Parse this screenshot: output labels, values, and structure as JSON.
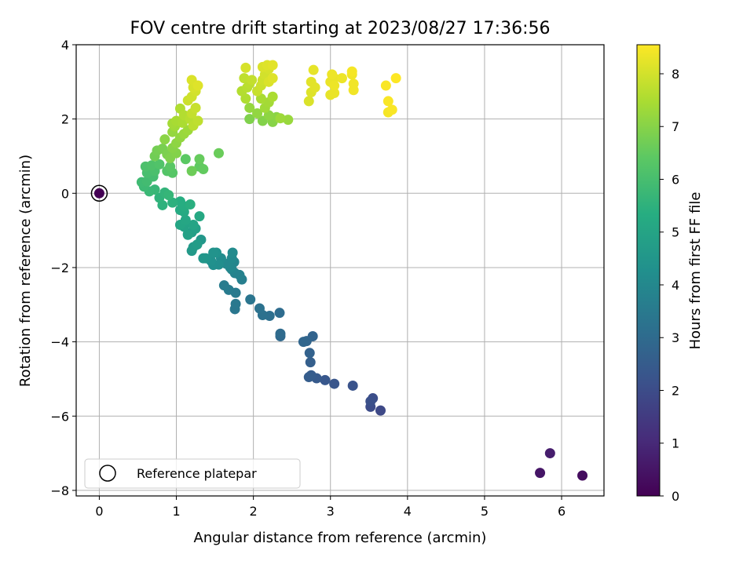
{
  "chart_data": {
    "type": "scatter",
    "title": "FOV centre drift starting at 2023/08/27 17:36:56",
    "xlabel": "Angular distance from reference (arcmin)",
    "ylabel": "Rotation from reference (arcmin)",
    "xlim": [
      -0.3,
      6.55
    ],
    "ylim": [
      -8.15,
      4.0
    ],
    "xticks": [
      0,
      1,
      2,
      3,
      4,
      5,
      6
    ],
    "yticks": [
      -8,
      -6,
      -4,
      -2,
      0,
      2,
      4
    ],
    "xtick_labels": [
      "0",
      "1",
      "2",
      "3",
      "4",
      "5",
      "6"
    ],
    "ytick_labels": [
      "−8",
      "−6",
      "−4",
      "−2",
      "0",
      "2",
      "4"
    ],
    "grid": true,
    "colormap": "viridis",
    "colorbar": {
      "label": "Hours from first FF file",
      "range": [
        0,
        8.55
      ],
      "ticks": [
        0,
        1,
        2,
        3,
        4,
        5,
        6,
        7,
        8
      ],
      "tick_labels": [
        "0",
        "1",
        "2",
        "3",
        "4",
        "5",
        "6",
        "7",
        "8"
      ]
    },
    "legend": {
      "placement": "lower-left",
      "entries": [
        {
          "label": "Reference platepar",
          "marker": "open-circle"
        }
      ]
    },
    "reference_point": {
      "x": 0,
      "y": 0,
      "hours": 0.0
    },
    "series": [
      {
        "points": [
          {
            "x": 6.27,
            "y": -7.6,
            "h": 0.3
          },
          {
            "x": 5.72,
            "y": -7.53,
            "h": 0.5
          },
          {
            "x": 5.85,
            "y": -7.0,
            "h": 0.7
          },
          {
            "x": 3.65,
            "y": -5.85,
            "h": 1.9
          },
          {
            "x": 3.52,
            "y": -5.75,
            "h": 2.0
          },
          {
            "x": 3.55,
            "y": -5.52,
            "h": 2.05
          },
          {
            "x": 3.52,
            "y": -5.6,
            "h": 2.1
          },
          {
            "x": 3.29,
            "y": -5.18,
            "h": 2.2
          },
          {
            "x": 3.05,
            "y": -5.13,
            "h": 2.3
          },
          {
            "x": 2.93,
            "y": -5.03,
            "h": 2.35
          },
          {
            "x": 2.82,
            "y": -4.98,
            "h": 2.45
          },
          {
            "x": 2.75,
            "y": -4.9,
            "h": 2.5
          },
          {
            "x": 2.72,
            "y": -4.95,
            "h": 2.55
          },
          {
            "x": 2.74,
            "y": -4.55,
            "h": 2.6
          },
          {
            "x": 2.73,
            "y": -4.3,
            "h": 2.7
          },
          {
            "x": 2.77,
            "y": -3.85,
            "h": 2.75
          },
          {
            "x": 2.69,
            "y": -3.98,
            "h": 2.8
          },
          {
            "x": 2.65,
            "y": -4.0,
            "h": 2.85
          },
          {
            "x": 2.35,
            "y": -3.85,
            "h": 2.95
          },
          {
            "x": 2.35,
            "y": -3.78,
            "h": 3.0
          },
          {
            "x": 2.34,
            "y": -3.22,
            "h": 3.05
          },
          {
            "x": 2.21,
            "y": -3.3,
            "h": 3.15
          },
          {
            "x": 2.12,
            "y": -3.28,
            "h": 3.2
          },
          {
            "x": 2.08,
            "y": -3.1,
            "h": 3.25
          },
          {
            "x": 1.96,
            "y": -2.86,
            "h": 3.35
          },
          {
            "x": 1.76,
            "y": -3.12,
            "h": 3.4
          },
          {
            "x": 1.77,
            "y": -2.98,
            "h": 3.45
          },
          {
            "x": 1.77,
            "y": -2.68,
            "h": 3.5
          },
          {
            "x": 1.68,
            "y": -2.6,
            "h": 3.55
          },
          {
            "x": 1.62,
            "y": -2.48,
            "h": 3.6
          },
          {
            "x": 1.85,
            "y": -2.32,
            "h": 3.7
          },
          {
            "x": 1.82,
            "y": -2.2,
            "h": 3.75
          },
          {
            "x": 1.76,
            "y": -2.15,
            "h": 3.8
          },
          {
            "x": 1.72,
            "y": -2.05,
            "h": 3.85
          },
          {
            "x": 1.75,
            "y": -1.85,
            "h": 3.9
          },
          {
            "x": 1.7,
            "y": -2.0,
            "h": 3.95
          },
          {
            "x": 1.65,
            "y": -1.9,
            "h": 4.0
          },
          {
            "x": 1.72,
            "y": -1.75,
            "h": 4.05
          },
          {
            "x": 1.73,
            "y": -1.6,
            "h": 4.1
          },
          {
            "x": 1.58,
            "y": -1.75,
            "h": 4.15
          },
          {
            "x": 1.55,
            "y": -1.92,
            "h": 4.2
          },
          {
            "x": 1.48,
            "y": -1.93,
            "h": 4.25
          },
          {
            "x": 1.45,
            "y": -1.82,
            "h": 4.3
          },
          {
            "x": 1.52,
            "y": -1.6,
            "h": 4.35
          },
          {
            "x": 1.48,
            "y": -1.6,
            "h": 4.4
          },
          {
            "x": 1.38,
            "y": -1.75,
            "h": 4.45
          },
          {
            "x": 1.35,
            "y": -1.75,
            "h": 4.5
          },
          {
            "x": 1.32,
            "y": -1.25,
            "h": 4.55
          },
          {
            "x": 1.2,
            "y": -1.55,
            "h": 4.6
          },
          {
            "x": 1.22,
            "y": -1.45,
            "h": 4.65
          },
          {
            "x": 1.27,
            "y": -1.38,
            "h": 4.7
          },
          {
            "x": 1.15,
            "y": -1.1,
            "h": 4.75
          },
          {
            "x": 1.2,
            "y": -1.05,
            "h": 4.8
          },
          {
            "x": 1.25,
            "y": -0.95,
            "h": 4.85
          },
          {
            "x": 1.15,
            "y": -1.12,
            "h": 4.9
          },
          {
            "x": 1.1,
            "y": -0.9,
            "h": 4.95
          },
          {
            "x": 1.22,
            "y": -0.85,
            "h": 5.0
          },
          {
            "x": 1.05,
            "y": -0.85,
            "h": 5.05
          },
          {
            "x": 1.12,
            "y": -0.72,
            "h": 5.1
          },
          {
            "x": 1.3,
            "y": -0.62,
            "h": 5.15
          },
          {
            "x": 1.1,
            "y": -0.5,
            "h": 5.2
          },
          {
            "x": 1.05,
            "y": -0.45,
            "h": 5.25
          },
          {
            "x": 1.1,
            "y": -0.35,
            "h": 5.3
          },
          {
            "x": 1.05,
            "y": -0.22,
            "h": 5.35
          },
          {
            "x": 1.18,
            "y": -0.3,
            "h": 5.4
          },
          {
            "x": 0.95,
            "y": -0.25,
            "h": 5.45
          },
          {
            "x": 0.82,
            "y": -0.32,
            "h": 5.5
          },
          {
            "x": 0.78,
            "y": -0.12,
            "h": 5.55
          },
          {
            "x": 0.85,
            "y": 0.02,
            "h": 5.6
          },
          {
            "x": 0.9,
            "y": -0.05,
            "h": 5.65
          },
          {
            "x": 0.72,
            "y": 0.1,
            "h": 5.7
          },
          {
            "x": 0.65,
            "y": 0.05,
            "h": 5.75
          },
          {
            "x": 0.58,
            "y": 0.18,
            "h": 5.8
          },
          {
            "x": 0.55,
            "y": 0.3,
            "h": 5.85
          },
          {
            "x": 0.62,
            "y": 0.32,
            "h": 5.9
          },
          {
            "x": 0.7,
            "y": 0.45,
            "h": 5.95
          },
          {
            "x": 0.62,
            "y": 0.55,
            "h": 6.0
          },
          {
            "x": 0.72,
            "y": 0.6,
            "h": 6.05
          },
          {
            "x": 0.6,
            "y": 0.72,
            "h": 6.1
          },
          {
            "x": 0.68,
            "y": 0.75,
            "h": 6.15
          },
          {
            "x": 0.78,
            "y": 0.78,
            "h": 6.2
          },
          {
            "x": 0.88,
            "y": 0.6,
            "h": 6.25
          },
          {
            "x": 0.95,
            "y": 0.55,
            "h": 6.3
          },
          {
            "x": 0.92,
            "y": 0.72,
            "h": 6.35
          },
          {
            "x": 1.12,
            "y": 0.92,
            "h": 6.4
          },
          {
            "x": 1.3,
            "y": 0.72,
            "h": 6.45
          },
          {
            "x": 1.35,
            "y": 0.65,
            "h": 6.5
          },
          {
            "x": 1.3,
            "y": 0.92,
            "h": 6.55
          },
          {
            "x": 1.55,
            "y": 1.08,
            "h": 6.6
          },
          {
            "x": 1.2,
            "y": 0.6,
            "h": 6.65
          },
          {
            "x": 0.72,
            "y": 1.0,
            "h": 6.7
          },
          {
            "x": 0.75,
            "y": 1.15,
            "h": 6.75
          },
          {
            "x": 0.82,
            "y": 1.2,
            "h": 6.8
          },
          {
            "x": 0.88,
            "y": 1.05,
            "h": 6.85
          },
          {
            "x": 0.92,
            "y": 0.95,
            "h": 6.9
          },
          {
            "x": 1.0,
            "y": 1.08,
            "h": 6.95
          },
          {
            "x": 0.95,
            "y": 1.22,
            "h": 7.0
          },
          {
            "x": 0.85,
            "y": 1.45,
            "h": 7.05
          },
          {
            "x": 1.0,
            "y": 1.35,
            "h": 7.1
          },
          {
            "x": 1.05,
            "y": 1.5,
            "h": 7.15
          },
          {
            "x": 0.95,
            "y": 1.65,
            "h": 7.2
          },
          {
            "x": 1.1,
            "y": 1.6,
            "h": 7.25
          },
          {
            "x": 1.15,
            "y": 1.7,
            "h": 7.3
          },
          {
            "x": 0.98,
            "y": 1.8,
            "h": 7.35
          },
          {
            "x": 0.95,
            "y": 1.88,
            "h": 7.4
          },
          {
            "x": 1.0,
            "y": 1.95,
            "h": 7.45
          },
          {
            "x": 1.08,
            "y": 1.9,
            "h": 7.5
          },
          {
            "x": 1.05,
            "y": 2.28,
            "h": 7.55
          },
          {
            "x": 1.1,
            "y": 2.1,
            "h": 7.6
          },
          {
            "x": 1.18,
            "y": 2.0,
            "h": 7.65
          },
          {
            "x": 1.22,
            "y": 1.82,
            "h": 7.7
          },
          {
            "x": 1.28,
            "y": 1.95,
            "h": 7.75
          },
          {
            "x": 1.2,
            "y": 2.15,
            "h": 7.8
          },
          {
            "x": 1.25,
            "y": 2.3,
            "h": 7.85
          },
          {
            "x": 1.15,
            "y": 2.5,
            "h": 7.9
          },
          {
            "x": 1.2,
            "y": 2.6,
            "h": 7.95
          },
          {
            "x": 1.25,
            "y": 2.75,
            "h": 8.0
          },
          {
            "x": 1.22,
            "y": 2.85,
            "h": 8.05
          },
          {
            "x": 1.2,
            "y": 3.05,
            "h": 8.1
          },
          {
            "x": 1.28,
            "y": 2.9,
            "h": 8.15
          },
          {
            "x": 1.95,
            "y": 2.0,
            "h": 6.9
          },
          {
            "x": 2.12,
            "y": 1.95,
            "h": 6.95
          },
          {
            "x": 2.25,
            "y": 1.92,
            "h": 7.0
          },
          {
            "x": 2.3,
            "y": 2.05,
            "h": 7.05
          },
          {
            "x": 2.2,
            "y": 2.1,
            "h": 7.1
          },
          {
            "x": 2.05,
            "y": 2.15,
            "h": 7.15
          },
          {
            "x": 1.95,
            "y": 2.3,
            "h": 7.2
          },
          {
            "x": 2.45,
            "y": 1.98,
            "h": 7.25
          },
          {
            "x": 2.35,
            "y": 2.02,
            "h": 7.3
          },
          {
            "x": 2.15,
            "y": 2.3,
            "h": 7.35
          },
          {
            "x": 2.2,
            "y": 2.45,
            "h": 7.4
          },
          {
            "x": 2.1,
            "y": 2.55,
            "h": 7.45
          },
          {
            "x": 2.25,
            "y": 2.6,
            "h": 7.5
          },
          {
            "x": 1.9,
            "y": 2.55,
            "h": 7.55
          },
          {
            "x": 1.85,
            "y": 2.75,
            "h": 7.6
          },
          {
            "x": 1.92,
            "y": 2.85,
            "h": 7.65
          },
          {
            "x": 1.95,
            "y": 2.95,
            "h": 7.7
          },
          {
            "x": 1.88,
            "y": 3.1,
            "h": 7.75
          },
          {
            "x": 1.98,
            "y": 3.05,
            "h": 7.8
          },
          {
            "x": 2.05,
            "y": 2.75,
            "h": 7.85
          },
          {
            "x": 2.1,
            "y": 2.9,
            "h": 7.9
          },
          {
            "x": 2.12,
            "y": 3.05,
            "h": 7.95
          },
          {
            "x": 2.15,
            "y": 3.2,
            "h": 8.0
          },
          {
            "x": 2.2,
            "y": 3.35,
            "h": 8.05
          },
          {
            "x": 2.12,
            "y": 3.4,
            "h": 8.1
          },
          {
            "x": 2.18,
            "y": 3.45,
            "h": 8.15
          },
          {
            "x": 2.25,
            "y": 3.45,
            "h": 8.2
          },
          {
            "x": 2.2,
            "y": 3.0,
            "h": 8.1
          },
          {
            "x": 1.9,
            "y": 3.38,
            "h": 8.05
          },
          {
            "x": 2.25,
            "y": 3.1,
            "h": 8.15
          },
          {
            "x": 2.72,
            "y": 2.48,
            "h": 8.1
          },
          {
            "x": 2.75,
            "y": 2.72,
            "h": 8.15
          },
          {
            "x": 2.75,
            "y": 3.0,
            "h": 8.2
          },
          {
            "x": 2.8,
            "y": 2.85,
            "h": 8.2
          },
          {
            "x": 2.78,
            "y": 3.32,
            "h": 8.25
          },
          {
            "x": 3.0,
            "y": 2.65,
            "h": 8.25
          },
          {
            "x": 3.05,
            "y": 2.7,
            "h": 8.3
          },
          {
            "x": 3.0,
            "y": 3.0,
            "h": 8.3
          },
          {
            "x": 3.05,
            "y": 3.1,
            "h": 8.3
          },
          {
            "x": 3.02,
            "y": 3.2,
            "h": 8.35
          },
          {
            "x": 3.15,
            "y": 3.1,
            "h": 8.35
          },
          {
            "x": 3.3,
            "y": 2.78,
            "h": 8.4
          },
          {
            "x": 3.3,
            "y": 2.95,
            "h": 8.4
          },
          {
            "x": 3.28,
            "y": 3.2,
            "h": 8.4
          },
          {
            "x": 3.28,
            "y": 3.28,
            "h": 8.45
          },
          {
            "x": 3.75,
            "y": 2.18,
            "h": 8.45
          },
          {
            "x": 3.8,
            "y": 2.25,
            "h": 8.5
          },
          {
            "x": 3.75,
            "y": 2.48,
            "h": 8.5
          },
          {
            "x": 3.72,
            "y": 2.9,
            "h": 8.5
          },
          {
            "x": 3.85,
            "y": 3.1,
            "h": 8.55
          },
          {
            "x": 3.05,
            "y": 2.9,
            "h": 8.35
          }
        ]
      }
    ]
  }
}
